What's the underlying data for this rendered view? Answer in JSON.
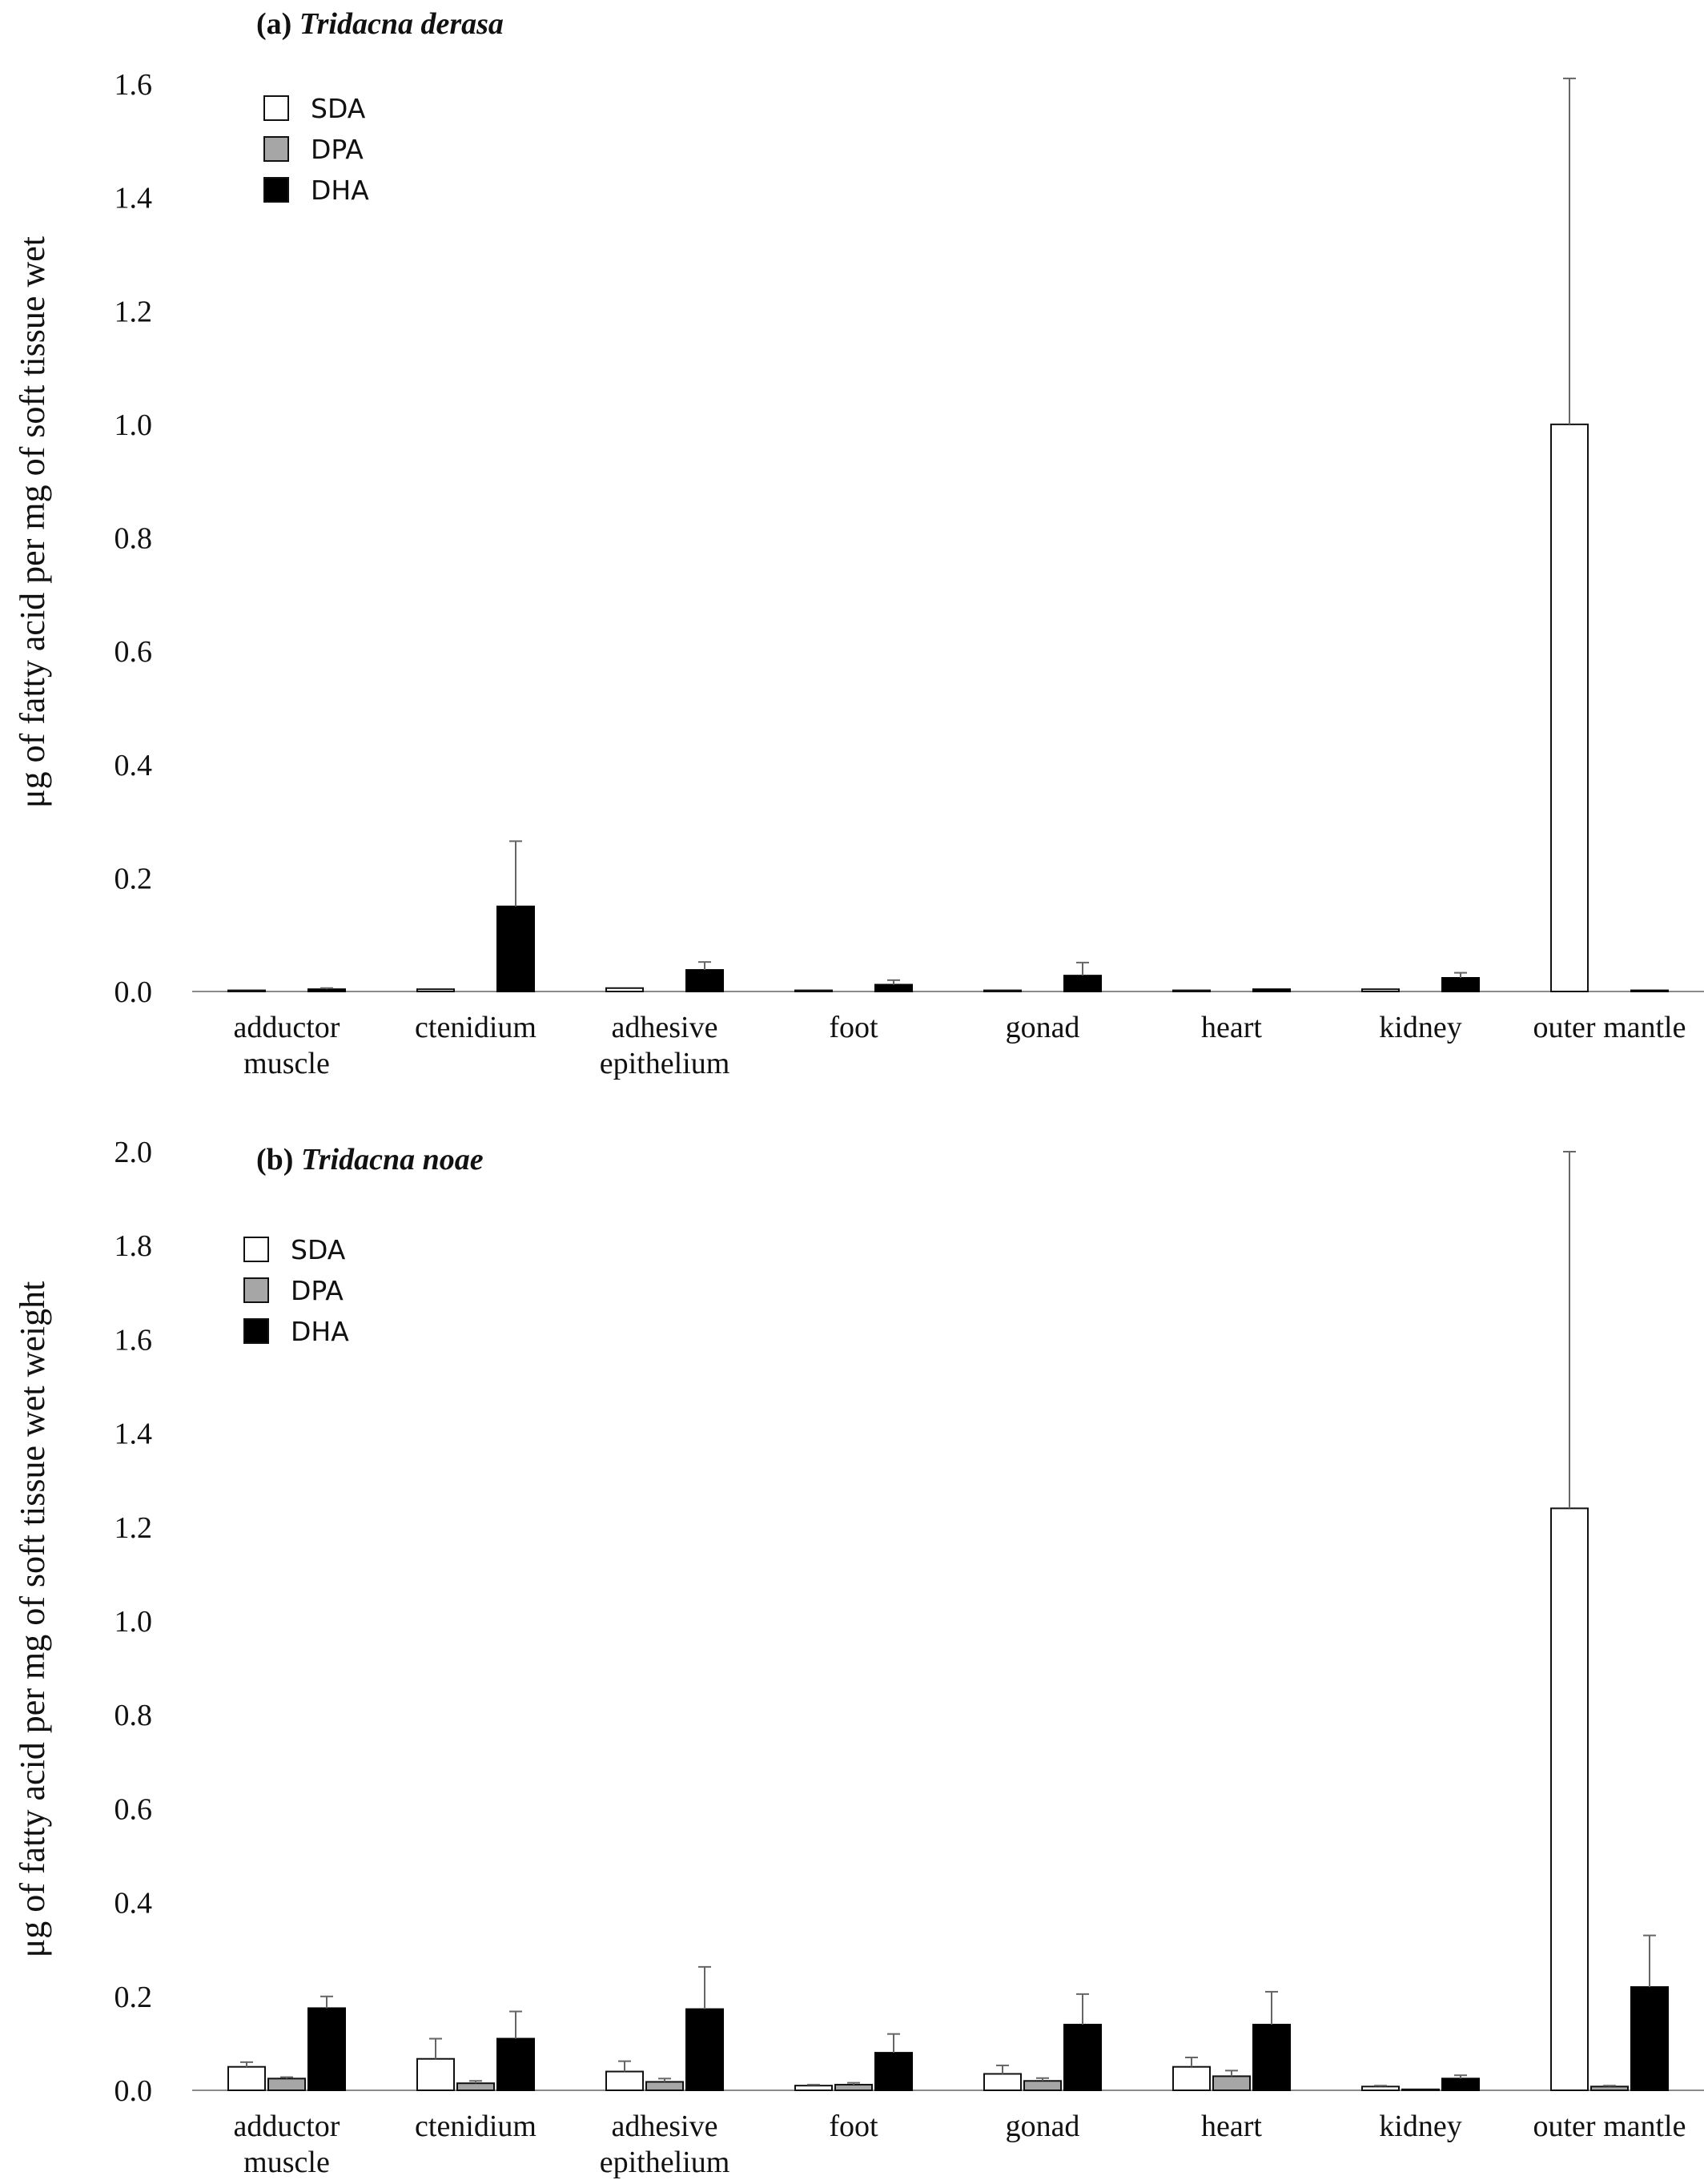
{
  "colors": {
    "SDA": "#ffffff",
    "DPA": "#a6a6a6",
    "DHA": "#000000",
    "error_bar": "#666666",
    "axis": "#8a8a8a"
  },
  "legend": {
    "placement": "top-left",
    "items": [
      "SDA",
      "DPA",
      "DHA"
    ]
  },
  "chart_data": [
    {
      "type": "bar",
      "title_label": "(a)",
      "title_species": "Tridacna derasa",
      "ylabel": "μg of fatty acid per mg of soft tissue wet",
      "xlabel": "",
      "ylim": [
        0,
        1.6
      ],
      "yticks": [
        "0.0",
        "0.2",
        "0.4",
        "0.6",
        "0.8",
        "1.0",
        "1.2",
        "1.4",
        "1.6"
      ],
      "grid": false,
      "categories": [
        [
          "adductor",
          "muscle"
        ],
        [
          "ctenidium"
        ],
        [
          "adhesive",
          "epithelium"
        ],
        [
          "foot"
        ],
        [
          "gonad"
        ],
        [
          "heart"
        ],
        [
          "kidney"
        ],
        [
          "outer mantle"
        ]
      ],
      "series": [
        {
          "name": "SDA",
          "values": [
            0.002,
            0.004,
            0.006,
            0.002,
            0.002,
            0.002,
            0.004,
            1.0
          ],
          "errors": [
            0.0,
            0.0,
            0.0,
            0.0,
            0.0,
            0.0,
            0.0,
            0.61
          ]
        },
        {
          "name": "DPA",
          "values": [
            0.0,
            0.0,
            0.0,
            0.0,
            0.0,
            0.0,
            0.0,
            0.0
          ],
          "errors": [
            0,
            0,
            0,
            0,
            0,
            0,
            0,
            0
          ]
        },
        {
          "name": "DHA",
          "values": [
            0.004,
            0.15,
            0.038,
            0.012,
            0.028,
            0.004,
            0.024,
            0.002
          ],
          "errors": [
            0.002,
            0.115,
            0.014,
            0.008,
            0.023,
            0.0,
            0.009,
            0.0
          ]
        }
      ]
    },
    {
      "type": "bar",
      "title_label": "(b)",
      "title_species": "Tridacna noae",
      "ylabel": "μg of fatty acid per mg of soft tissue wet weight",
      "xlabel": "",
      "ylim": [
        0,
        2.0
      ],
      "yticks": [
        "0.0",
        "0.2",
        "0.4",
        "0.6",
        "0.8",
        "1.0",
        "1.2",
        "1.4",
        "1.6",
        "1.8",
        "2.0"
      ],
      "grid": false,
      "categories": [
        [
          "adductor",
          "muscle"
        ],
        [
          "ctenidium"
        ],
        [
          "adhesive",
          "epithelium"
        ],
        [
          "foot"
        ],
        [
          "gonad"
        ],
        [
          "heart"
        ],
        [
          "kidney"
        ],
        [
          "outer mantle"
        ]
      ],
      "series": [
        {
          "name": "SDA",
          "values": [
            0.05,
            0.067,
            0.04,
            0.01,
            0.035,
            0.05,
            0.008,
            1.24
          ],
          "errors": [
            0.01,
            0.043,
            0.022,
            0.002,
            0.018,
            0.02,
            0.002,
            0.76
          ]
        },
        {
          "name": "DPA",
          "values": [
            0.025,
            0.015,
            0.018,
            0.012,
            0.02,
            0.03,
            0.002,
            0.008
          ],
          "errors": [
            0.003,
            0.005,
            0.007,
            0.004,
            0.006,
            0.012,
            0.0,
            0.002
          ]
        },
        {
          "name": "DHA",
          "values": [
            0.175,
            0.11,
            0.173,
            0.08,
            0.14,
            0.14,
            0.025,
            0.22
          ],
          "errors": [
            0.025,
            0.058,
            0.09,
            0.04,
            0.065,
            0.07,
            0.007,
            0.11
          ]
        }
      ]
    }
  ]
}
